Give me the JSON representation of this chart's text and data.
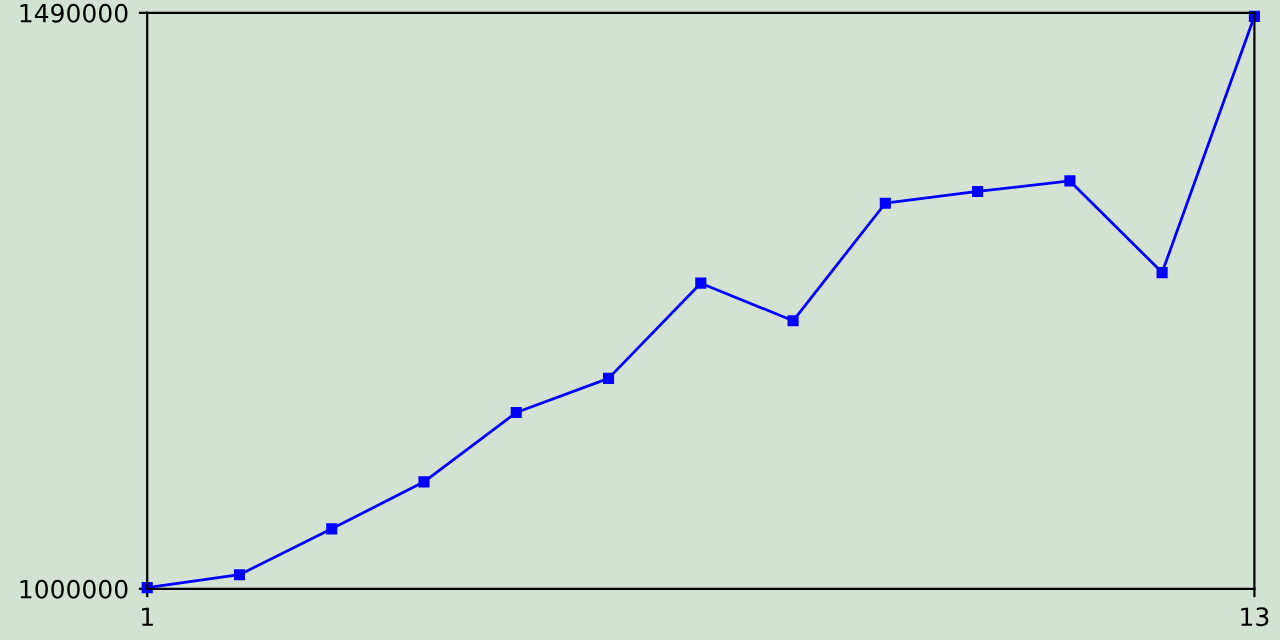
{
  "chart_data": {
    "type": "line",
    "x": [
      1,
      2,
      3,
      4,
      5,
      6,
      7,
      8,
      9,
      10,
      11,
      12,
      13
    ],
    "series": [
      {
        "color": "#0000ff",
        "values": [
          1001000,
          1012000,
          1051000,
          1091000,
          1150000,
          1179000,
          1260000,
          1228000,
          1328000,
          1338000,
          1347000,
          1269000,
          1487000
        ]
      }
    ],
    "xlim": [
      1,
      13
    ],
    "ylim": [
      1000000,
      1490000
    ],
    "xticks": [
      1,
      13
    ],
    "yticks": [
      1000000,
      1490000
    ],
    "grid": false,
    "legend": false,
    "marker": "square",
    "line_style": "solid"
  }
}
